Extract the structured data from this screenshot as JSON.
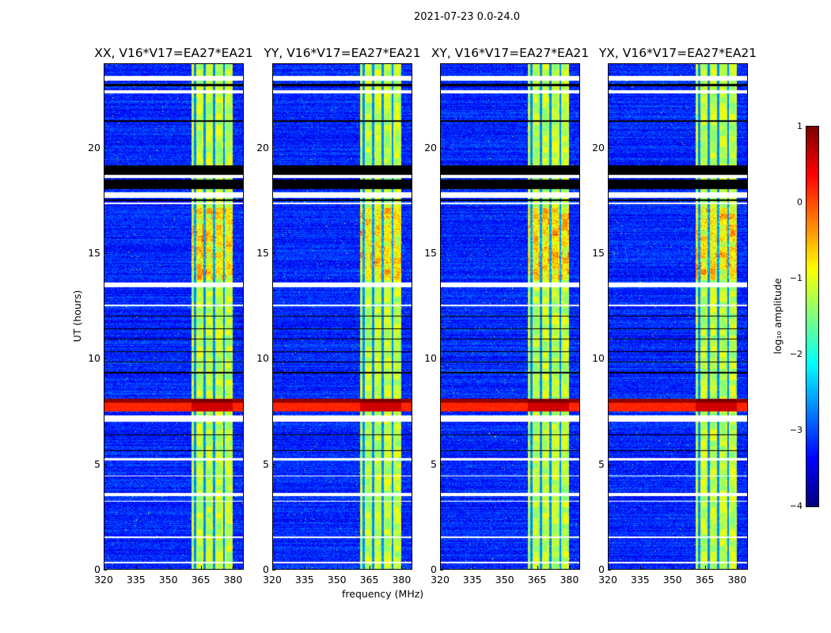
{
  "chart_data": {
    "type": "heatmap",
    "suptitle": "2021-07-23 0.0-24.0",
    "xlabel": "frequency (MHz)",
    "ylabel": "UT (hours)",
    "xlim": [
      320,
      385
    ],
    "ylim": [
      0,
      24
    ],
    "xticks": [
      "320",
      "335",
      "350",
      "365",
      "380"
    ],
    "yticks": [
      "0",
      "5",
      "10",
      "15",
      "20"
    ],
    "panels": [
      {
        "title": "XX, V16*V17=EA27*EA21",
        "polarization": "XX"
      },
      {
        "title": "YY, V16*V17=EA27*EA21",
        "polarization": "YY"
      },
      {
        "title": "XY, V16*V17=EA27*EA21",
        "polarization": "XY"
      },
      {
        "title": "YX, V16*V17=EA27*EA21",
        "polarization": "YX"
      }
    ],
    "colorbar": {
      "label": "log₁₀ amplitude",
      "range": [
        -4,
        1
      ],
      "ticks": [
        "−4",
        "−3",
        "−2",
        "−1",
        "0",
        "1"
      ],
      "colormap": "jet"
    },
    "background_level_log10": -3.2,
    "rfi_band_mhz": [
      361,
      380
    ],
    "rfi_band_level_log10": -1.2,
    "rfi_subchannel_gaps_mhz": [
      362.5,
      367,
      371.5,
      376
    ],
    "strong_rfi_hours": [
      [
        13.8,
        17.2
      ],
      [
        7.5,
        8.1
      ]
    ],
    "flagged_white_hours": [
      [
        23.2,
        23.45
      ],
      [
        22.6,
        22.75
      ],
      [
        18.6,
        18.72
      ],
      [
        17.65,
        17.9
      ],
      [
        17.35,
        17.4
      ],
      [
        13.4,
        13.6
      ],
      [
        12.5,
        12.55
      ],
      [
        7.0,
        7.3
      ],
      [
        5.15,
        5.25
      ],
      [
        4.4,
        4.45
      ],
      [
        3.45,
        3.6
      ],
      [
        3.2,
        3.25
      ],
      [
        1.45,
        1.55
      ],
      [
        0.25,
        0.35
      ]
    ],
    "flagged_black_hours": [
      [
        22.95,
        23.05
      ],
      [
        21.25,
        21.32
      ],
      [
        18.75,
        19.2
      ],
      [
        18.05,
        18.5
      ],
      [
        17.5,
        17.55
      ],
      [
        12.0,
        12.05
      ],
      [
        11.4,
        11.45
      ],
      [
        10.9,
        10.95
      ],
      [
        10.3,
        10.35
      ],
      [
        9.8,
        9.85
      ],
      [
        9.3,
        9.35
      ],
      [
        6.35,
        6.4
      ],
      [
        5.6,
        5.65
      ]
    ]
  }
}
